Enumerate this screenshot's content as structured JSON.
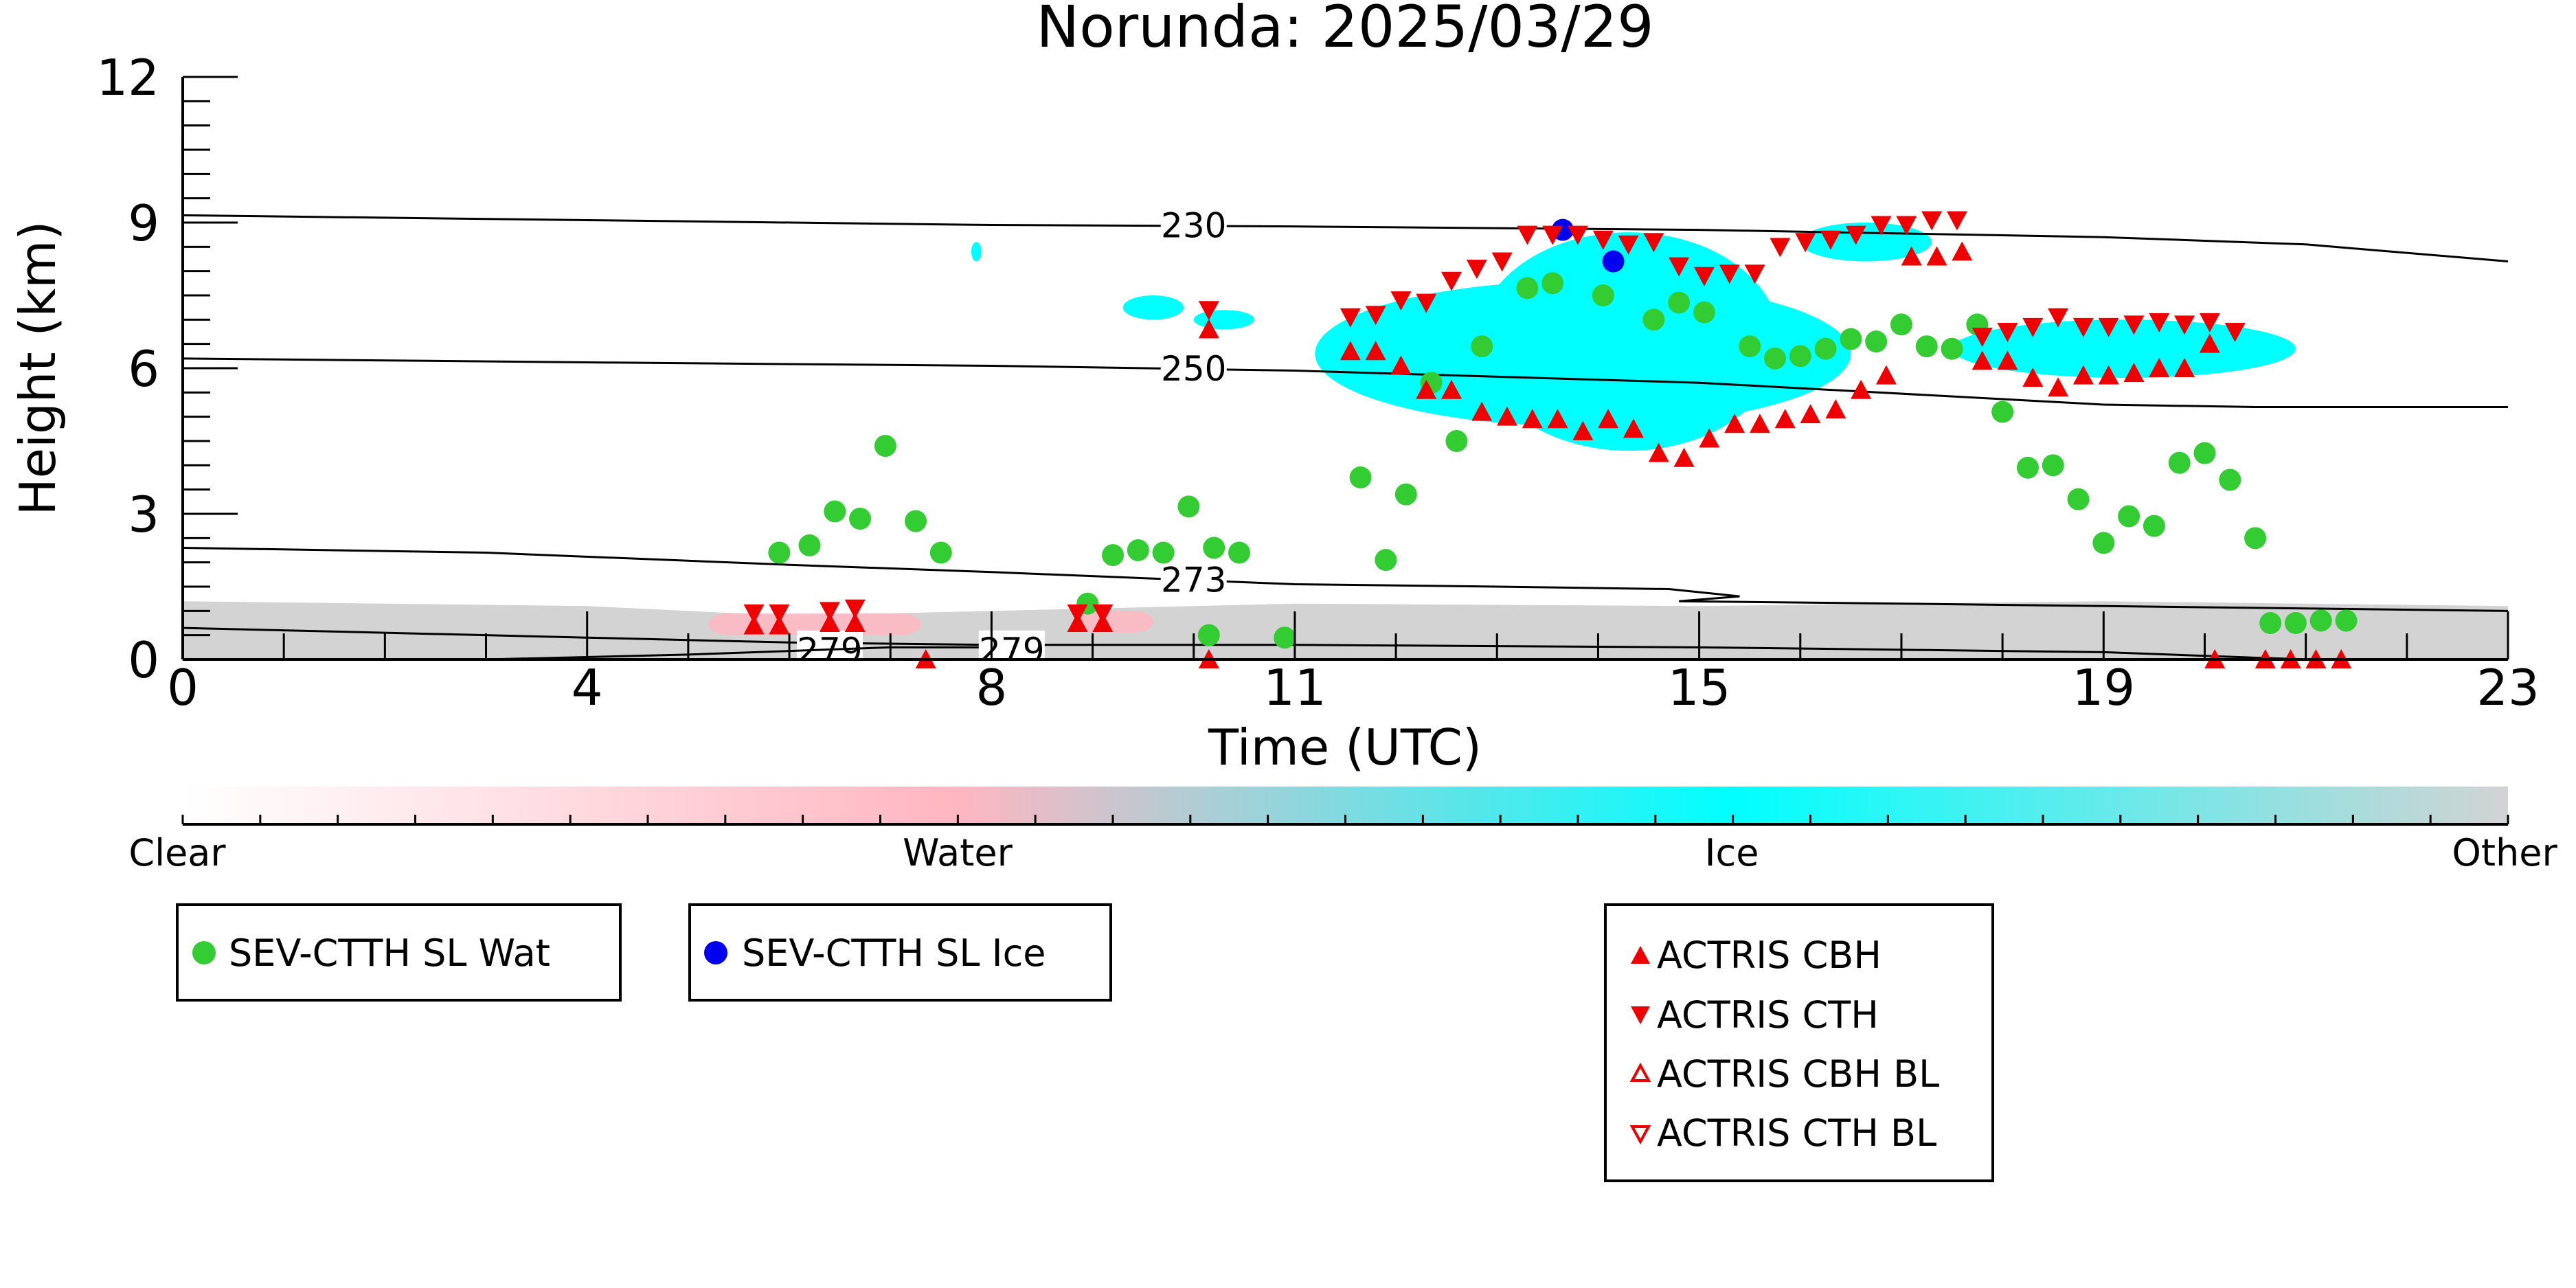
{
  "chart_data": {
    "type": "scatter",
    "title": "Norunda: 2025/03/29",
    "xlabel": "Time (UTC)",
    "ylabel": "Height (km)",
    "xlim": [
      0,
      23
    ],
    "ylim": [
      0,
      12
    ],
    "x_ticks": [
      0,
      4,
      8,
      11,
      15,
      19,
      23
    ],
    "y_ticks": [
      0,
      3,
      6,
      9,
      12
    ],
    "colors": {
      "clear": "#ffffff",
      "water": "#ffb6c1",
      "ice": "#00ffff",
      "other": "#d3d3d3",
      "sev_wat": "#33cc33",
      "sev_ice": "#0000ee",
      "actris": "#ee0000"
    },
    "colorbar": {
      "labels": [
        "Clear",
        "Water",
        "Ice",
        "Other"
      ]
    },
    "contours": [
      {
        "label": "230",
        "label_at": [
          10,
          8.95
        ],
        "points": [
          [
            0,
            9.15
          ],
          [
            4,
            9.05
          ],
          [
            8,
            8.95
          ],
          [
            11,
            8.92
          ],
          [
            15,
            8.85
          ],
          [
            19,
            8.7
          ],
          [
            21,
            8.55
          ],
          [
            23,
            8.2
          ]
        ]
      },
      {
        "label": "250",
        "label_at": [
          10,
          6.0
        ],
        "points": [
          [
            0,
            6.2
          ],
          [
            4,
            6.12
          ],
          [
            8,
            6.05
          ],
          [
            11,
            5.95
          ],
          [
            15,
            5.7
          ],
          [
            19,
            5.25
          ],
          [
            20.5,
            5.2
          ],
          [
            23,
            5.2
          ]
        ]
      },
      {
        "label": "273",
        "label_at": [
          10,
          1.65
        ],
        "points": [
          [
            0,
            2.3
          ],
          [
            3,
            2.2
          ],
          [
            6,
            1.95
          ],
          [
            8,
            1.8
          ],
          [
            11,
            1.55
          ],
          [
            13,
            1.5
          ],
          [
            14.7,
            1.45
          ],
          [
            15.4,
            1.3
          ],
          [
            14.8,
            1.2
          ],
          [
            17,
            1.15
          ],
          [
            19,
            1.1
          ],
          [
            23,
            1.0
          ]
        ]
      },
      {
        "label": "279",
        "label_at": [
          6.4,
          0.2
        ],
        "points": [
          [
            0,
            0.65
          ],
          [
            4,
            0.45
          ],
          [
            6,
            0.35
          ],
          [
            8,
            0.3
          ],
          [
            11,
            0.3
          ],
          [
            15,
            0.25
          ],
          [
            19,
            0.15
          ],
          [
            21,
            0.0
          ]
        ]
      },
      {
        "label": "279",
        "label_at": [
          8.2,
          0.2
        ],
        "points": [
          [
            3,
            0.0
          ],
          [
            5,
            0.1
          ],
          [
            7,
            0.25
          ],
          [
            8,
            0.25
          ]
        ]
      }
    ],
    "cloud_mask": {
      "other_layer": [
        [
          0,
          1.2
        ],
        [
          4,
          1.1
        ],
        [
          6,
          0.9
        ],
        [
          8,
          1.0
        ],
        [
          11,
          1.15
        ],
        [
          15,
          1.1
        ],
        [
          19,
          1.2
        ],
        [
          23,
          1.1
        ]
      ],
      "water_patches": [
        {
          "x0": 5.2,
          "x1": 7.3,
          "y0": 0.5,
          "y1": 0.95
        },
        {
          "x0": 8.8,
          "x1": 9.6,
          "y0": 0.55,
          "y1": 1.0
        }
      ],
      "ice_patches": [
        {
          "x0": 11.2,
          "x1": 16.5,
          "y0": 4.8,
          "y1": 7.8
        },
        {
          "x0": 12.8,
          "x1": 15.8,
          "y0": 4.3,
          "y1": 8.8
        },
        {
          "x0": 16.0,
          "x1": 17.3,
          "y0": 8.2,
          "y1": 9.0
        },
        {
          "x0": 17.5,
          "x1": 20.9,
          "y0": 5.8,
          "y1": 7.0
        },
        {
          "x0": 10.0,
          "x1": 10.6,
          "y0": 6.8,
          "y1": 7.2
        },
        {
          "x0": 9.3,
          "x1": 9.9,
          "y0": 7.0,
          "y1": 7.5
        },
        {
          "x0": 7.8,
          "x1": 7.9,
          "y0": 8.2,
          "y1": 8.6
        }
      ]
    },
    "series": [
      {
        "name": "SEV-CTTH SL Wat",
        "marker": "circle",
        "color": "#33cc33",
        "points": [
          [
            5.9,
            2.2
          ],
          [
            6.2,
            2.35
          ],
          [
            6.45,
            3.05
          ],
          [
            6.7,
            2.9
          ],
          [
            6.95,
            4.4
          ],
          [
            7.25,
            2.85
          ],
          [
            7.5,
            2.2
          ],
          [
            8.95,
            1.15
          ],
          [
            9.2,
            2.15
          ],
          [
            9.45,
            2.25
          ],
          [
            9.7,
            2.2
          ],
          [
            9.95,
            3.15
          ],
          [
            10.2,
            2.3
          ],
          [
            10.45,
            2.2
          ],
          [
            10.15,
            0.5
          ],
          [
            10.9,
            0.45
          ],
          [
            11.65,
            3.75
          ],
          [
            11.9,
            2.05
          ],
          [
            12.1,
            3.4
          ],
          [
            12.35,
            5.7
          ],
          [
            12.6,
            4.5
          ],
          [
            12.85,
            6.45
          ],
          [
            13.3,
            7.65
          ],
          [
            13.55,
            7.75
          ],
          [
            14.05,
            7.5
          ],
          [
            14.55,
            7.0
          ],
          [
            14.8,
            7.35
          ],
          [
            15.05,
            7.15
          ],
          [
            15.5,
            6.45
          ],
          [
            15.75,
            6.2
          ],
          [
            16.0,
            6.25
          ],
          [
            16.25,
            6.4
          ],
          [
            16.5,
            6.6
          ],
          [
            16.75,
            6.55
          ],
          [
            17.0,
            6.9
          ],
          [
            17.25,
            6.45
          ],
          [
            17.5,
            6.4
          ],
          [
            17.75,
            6.9
          ],
          [
            18.0,
            5.1
          ],
          [
            18.25,
            3.95
          ],
          [
            18.5,
            4.0
          ],
          [
            18.75,
            3.3
          ],
          [
            19.0,
            2.4
          ],
          [
            19.25,
            2.95
          ],
          [
            19.5,
            2.75
          ],
          [
            19.75,
            4.05
          ],
          [
            20.0,
            4.25
          ],
          [
            20.25,
            3.7
          ],
          [
            20.5,
            2.5
          ],
          [
            20.65,
            0.75
          ],
          [
            20.9,
            0.75
          ],
          [
            21.15,
            0.8
          ],
          [
            21.4,
            0.8
          ]
        ]
      },
      {
        "name": "SEV-CTTH SL Ice",
        "marker": "circle",
        "color": "#0000ee",
        "points": [
          [
            13.65,
            8.85
          ],
          [
            14.15,
            8.2
          ]
        ]
      },
      {
        "name": "ACTRIS CBH",
        "marker": "triangle-up",
        "color": "#ee0000",
        "points": [
          [
            5.65,
            0.7
          ],
          [
            5.9,
            0.7
          ],
          [
            6.4,
            0.75
          ],
          [
            6.65,
            0.75
          ],
          [
            8.85,
            0.75
          ],
          [
            9.1,
            0.75
          ],
          [
            10.15,
            6.8
          ],
          [
            11.55,
            6.35
          ],
          [
            11.8,
            6.35
          ],
          [
            12.05,
            6.05
          ],
          [
            12.3,
            5.55
          ],
          [
            12.55,
            5.55
          ],
          [
            12.85,
            5.1
          ],
          [
            13.1,
            5.0
          ],
          [
            13.35,
            4.95
          ],
          [
            13.6,
            4.95
          ],
          [
            13.85,
            4.7
          ],
          [
            14.1,
            4.95
          ],
          [
            14.35,
            4.75
          ],
          [
            14.6,
            4.25
          ],
          [
            14.85,
            4.15
          ],
          [
            15.1,
            4.55
          ],
          [
            15.35,
            4.85
          ],
          [
            15.6,
            4.85
          ],
          [
            15.85,
            4.95
          ],
          [
            16.1,
            5.05
          ],
          [
            16.35,
            5.15
          ],
          [
            16.6,
            5.55
          ],
          [
            16.85,
            5.85
          ],
          [
            17.1,
            8.3
          ],
          [
            17.35,
            8.3
          ],
          [
            17.6,
            8.4
          ],
          [
            17.8,
            6.15
          ],
          [
            18.05,
            6.15
          ],
          [
            18.3,
            5.8
          ],
          [
            18.55,
            5.6
          ],
          [
            18.8,
            5.85
          ],
          [
            19.05,
            5.85
          ],
          [
            19.3,
            5.9
          ],
          [
            19.55,
            6.0
          ],
          [
            19.8,
            6.0
          ],
          [
            20.05,
            6.5
          ],
          [
            20.1,
            0.0
          ],
          [
            20.6,
            0.0
          ],
          [
            20.85,
            0.0
          ],
          [
            21.1,
            0.0
          ],
          [
            21.35,
            0.0
          ],
          [
            7.35,
            0.0
          ],
          [
            10.15,
            0.0
          ]
        ]
      },
      {
        "name": "ACTRIS CTH",
        "marker": "triangle-down",
        "color": "#ee0000",
        "points": [
          [
            5.65,
            0.95
          ],
          [
            5.9,
            0.95
          ],
          [
            6.4,
            1.0
          ],
          [
            6.65,
            1.05
          ],
          [
            8.85,
            0.95
          ],
          [
            9.1,
            0.95
          ],
          [
            10.15,
            7.2
          ],
          [
            11.55,
            7.05
          ],
          [
            11.8,
            7.1
          ],
          [
            12.05,
            7.4
          ],
          [
            12.3,
            7.35
          ],
          [
            12.55,
            7.8
          ],
          [
            12.8,
            8.05
          ],
          [
            13.05,
            8.2
          ],
          [
            13.3,
            8.75
          ],
          [
            13.55,
            8.75
          ],
          [
            13.8,
            8.75
          ],
          [
            14.05,
            8.65
          ],
          [
            14.3,
            8.55
          ],
          [
            14.55,
            8.6
          ],
          [
            14.8,
            8.1
          ],
          [
            15.05,
            7.9
          ],
          [
            15.3,
            7.95
          ],
          [
            15.55,
            7.95
          ],
          [
            15.8,
            8.5
          ],
          [
            16.05,
            8.6
          ],
          [
            16.3,
            8.65
          ],
          [
            16.55,
            8.75
          ],
          [
            16.8,
            8.95
          ],
          [
            17.05,
            8.95
          ],
          [
            17.3,
            9.05
          ],
          [
            17.55,
            9.05
          ],
          [
            17.8,
            6.65
          ],
          [
            18.05,
            6.75
          ],
          [
            18.3,
            6.85
          ],
          [
            18.55,
            7.05
          ],
          [
            18.8,
            6.85
          ],
          [
            19.05,
            6.85
          ],
          [
            19.3,
            6.9
          ],
          [
            19.55,
            6.95
          ],
          [
            19.8,
            6.9
          ],
          [
            20.05,
            6.95
          ],
          [
            20.3,
            6.75
          ]
        ]
      },
      {
        "name": "ACTRIS CBH BL",
        "marker": "triangle-up-open",
        "color": "#ee0000",
        "points": []
      },
      {
        "name": "ACTRIS CTH BL",
        "marker": "triangle-down-open",
        "color": "#ee0000",
        "points": []
      }
    ],
    "legends": [
      {
        "entries": [
          "SEV-CTTH SL Wat"
        ]
      },
      {
        "entries": [
          "SEV-CTTH SL Ice"
        ]
      },
      {
        "entries": [
          "ACTRIS CBH",
          "ACTRIS CTH",
          "ACTRIS CBH BL",
          "ACTRIS CTH BL"
        ]
      }
    ]
  }
}
